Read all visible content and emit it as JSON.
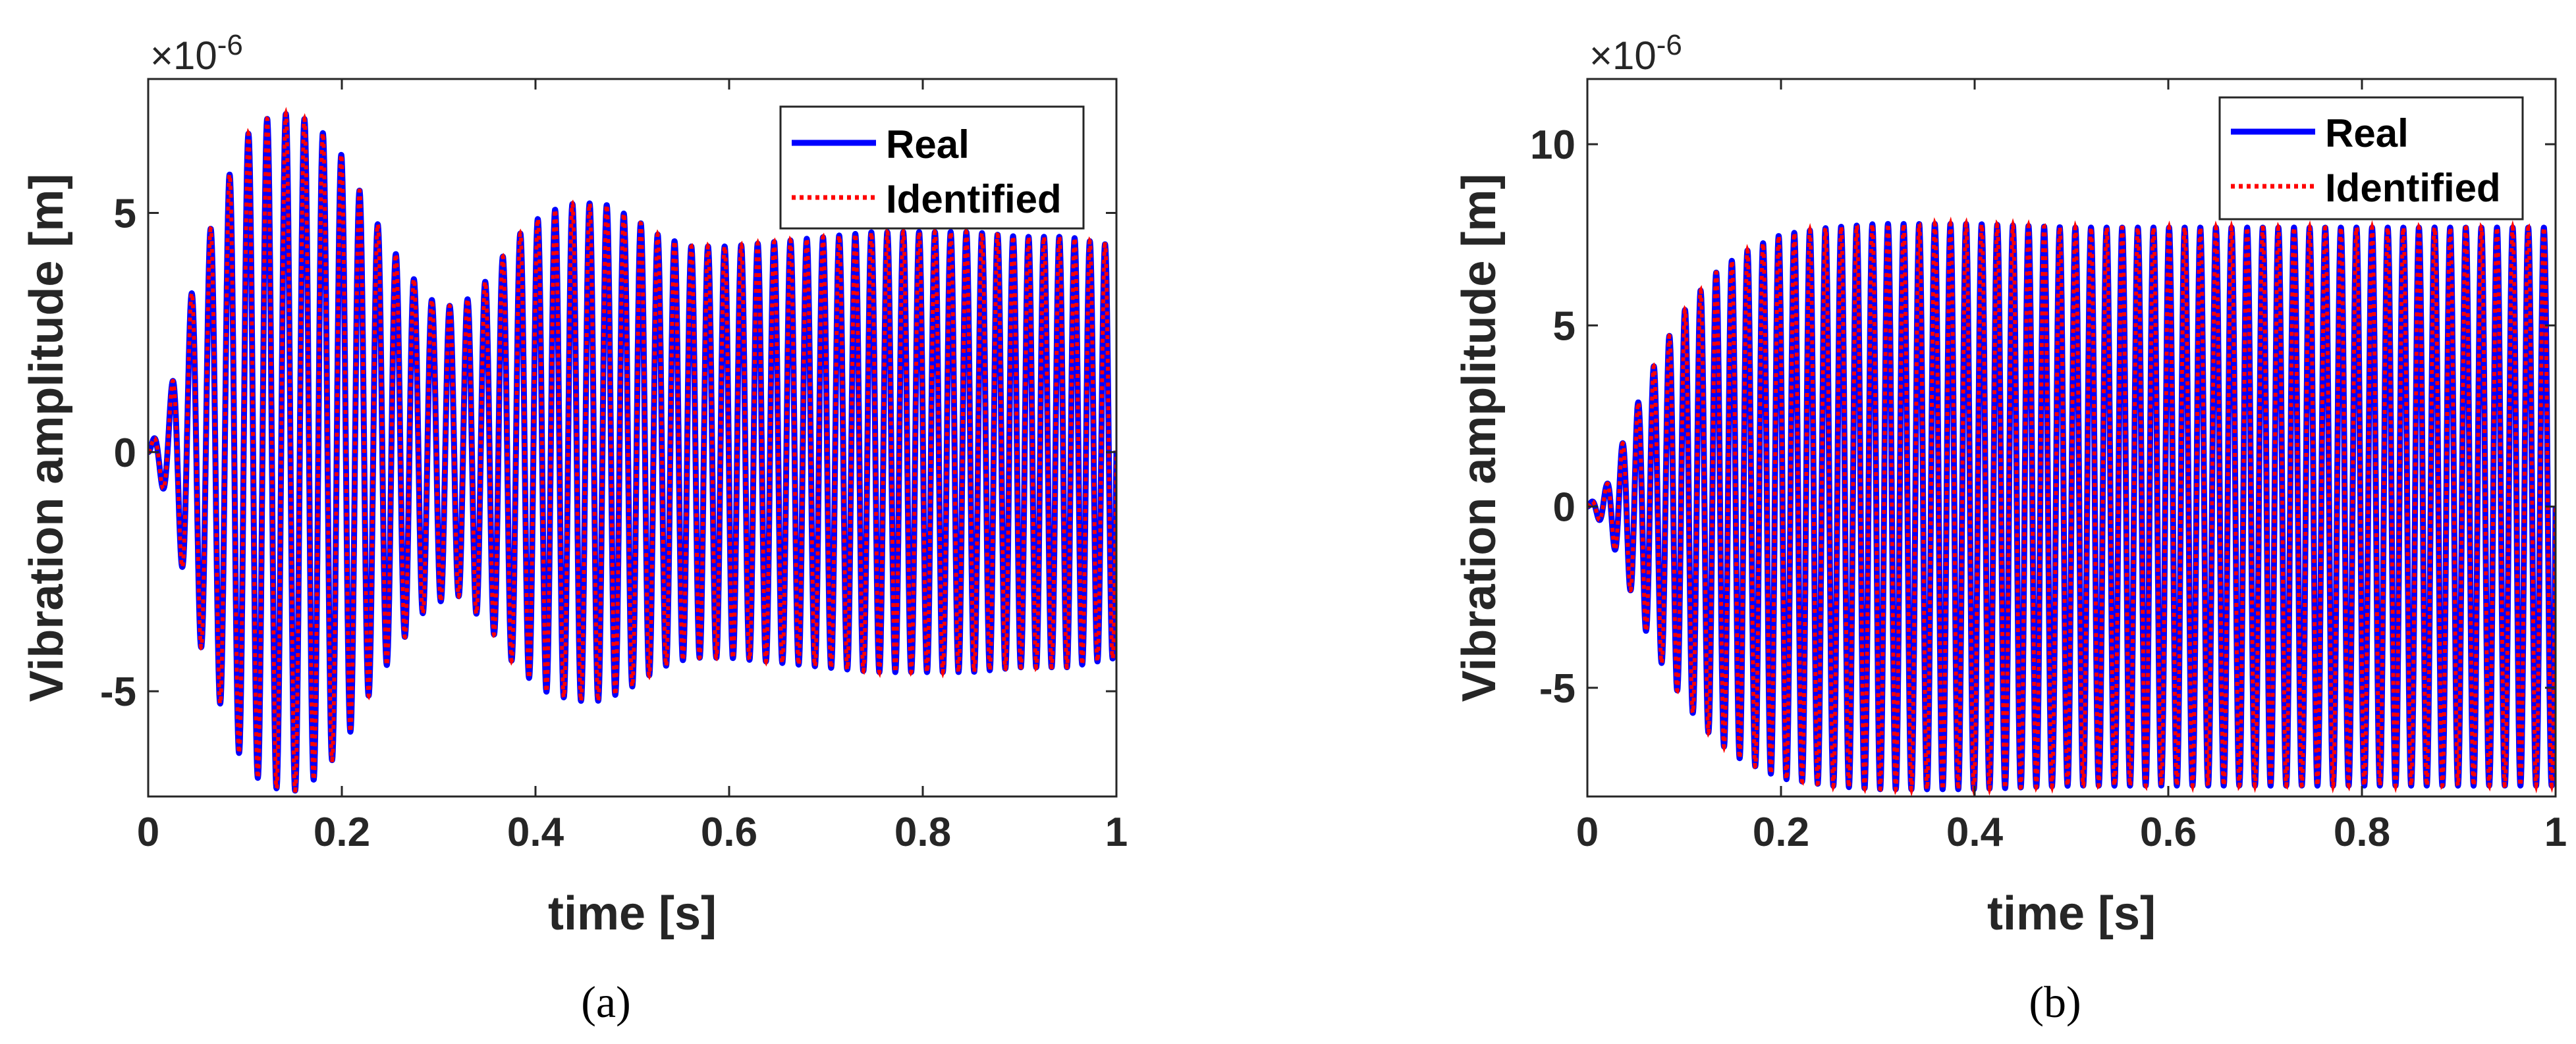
{
  "chart_data": [
    {
      "type": "line",
      "caption": "(a)",
      "xlabel": "time [s]",
      "ylabel": "Vibration amplitude [m]",
      "exponent_prefix": "×10",
      "exponent_power": "-6",
      "xlim": [
        0,
        1
      ],
      "ylim": [
        -7.2,
        7.8
      ],
      "xticks": [
        0,
        0.2,
        0.4,
        0.6,
        0.8,
        1
      ],
      "xtick_labels": [
        "0",
        "0.2",
        "0.4",
        "0.6",
        "0.8",
        "1"
      ],
      "yticks": [
        -5,
        0,
        5
      ],
      "ytick_labels": [
        "-5",
        "0",
        "5"
      ],
      "legend": [
        "Real",
        "Identified"
      ],
      "legend_position": "top-right",
      "series": [
        {
          "name": "Real",
          "color": "#0000ff",
          "style": "solid",
          "signal": {
            "frequency_hz": [
              50,
              64
            ],
            "envelope_t": [
              0,
              0.02,
              0.05,
              0.08,
              0.1,
              0.125,
              0.15,
              0.175,
              0.2,
              0.23,
              0.26,
              0.29,
              0.32,
              0.35,
              0.38,
              0.41,
              0.44,
              0.47,
              0.5,
              0.53,
              0.56,
              0.6,
              0.65,
              0.7,
              0.75,
              0.8,
              0.85,
              0.9,
              0.95,
              1.0
            ],
            "envelope_upper": [
              0,
              1.0,
              3.8,
              5.6,
              6.6,
              7.0,
              7.1,
              6.8,
              6.2,
              5.0,
              4.0,
              3.2,
              3.0,
              3.6,
              4.5,
              5.0,
              5.2,
              5.2,
              4.9,
              4.5,
              4.3,
              4.3,
              4.4,
              4.5,
              4.6,
              4.6,
              4.6,
              4.5,
              4.5,
              4.3
            ],
            "envelope_lower": [
              0,
              -1.0,
              -3.8,
              -5.6,
              -6.6,
              -7.0,
              -7.1,
              -6.8,
              -6.2,
              -5.0,
              -4.0,
              -3.2,
              -3.0,
              -3.6,
              -4.5,
              -5.0,
              -5.2,
              -5.2,
              -4.9,
              -4.5,
              -4.3,
              -4.3,
              -4.4,
              -4.5,
              -4.6,
              -4.6,
              -4.6,
              -4.5,
              -4.5,
              -4.3
            ]
          }
        },
        {
          "name": "Identified",
          "color": "#ff0000",
          "style": "dotted",
          "signal": {
            "frequency_hz": [
              50,
              64
            ],
            "envelope_t": [
              0,
              0.02,
              0.05,
              0.08,
              0.1,
              0.125,
              0.15,
              0.175,
              0.2,
              0.23,
              0.26,
              0.29,
              0.32,
              0.35,
              0.38,
              0.41,
              0.44,
              0.47,
              0.5,
              0.53,
              0.56,
              0.6,
              0.65,
              0.7,
              0.75,
              0.8,
              0.85,
              0.9,
              0.95,
              1.0
            ],
            "envelope_upper": [
              0,
              1.0,
              3.8,
              5.6,
              6.6,
              7.0,
              7.1,
              6.8,
              6.2,
              5.0,
              4.0,
              3.2,
              3.0,
              3.6,
              4.5,
              5.0,
              5.2,
              5.2,
              4.9,
              4.5,
              4.3,
              4.3,
              4.4,
              4.5,
              4.6,
              4.6,
              4.6,
              4.5,
              4.5,
              4.3
            ],
            "envelope_lower": [
              0,
              -1.0,
              -3.8,
              -5.6,
              -6.6,
              -7.0,
              -7.1,
              -6.8,
              -6.2,
              -5.0,
              -4.0,
              -3.2,
              -3.0,
              -3.6,
              -4.5,
              -5.0,
              -5.2,
              -5.2,
              -4.9,
              -4.5,
              -4.3,
              -4.3,
              -4.4,
              -4.5,
              -4.6,
              -4.6,
              -4.6,
              -4.5,
              -4.5,
              -4.3
            ]
          }
        }
      ]
    },
    {
      "type": "line",
      "caption": "(b)",
      "xlabel": "time [s]",
      "ylabel": "Vibration amplitude [m]",
      "exponent_prefix": "×10",
      "exponent_power": "-6",
      "xlim": [
        0,
        1
      ],
      "ylim": [
        -8.0,
        11.8
      ],
      "xticks": [
        0,
        0.2,
        0.4,
        0.6,
        0.8,
        1
      ],
      "xtick_labels": [
        "0",
        "0.2",
        "0.4",
        "0.6",
        "0.8",
        "1"
      ],
      "yticks": [
        -5,
        0,
        5,
        10
      ],
      "ytick_labels": [
        "-5",
        "0",
        "5",
        "10"
      ],
      "legend": [
        "Real",
        "Identified"
      ],
      "legend_position": "top-right",
      "series": [
        {
          "name": "Real",
          "color": "#0000ff",
          "style": "solid",
          "signal": {
            "frequency_hz": [
              62,
              62
            ],
            "envelope_t": [
              0,
              0.02,
              0.04,
              0.06,
              0.08,
              0.1,
              0.13,
              0.16,
              0.2,
              0.25,
              0.3,
              0.35,
              0.4,
              0.5,
              0.6,
              0.7,
              0.8,
              0.9,
              1.0
            ],
            "envelope_upper": [
              0,
              0.6,
              2.0,
              3.4,
              4.5,
              5.4,
              6.4,
              7.0,
              7.5,
              7.7,
              7.8,
              7.8,
              7.8,
              7.7,
              7.7,
              7.7,
              7.7,
              7.7,
              7.7
            ],
            "envelope_lower": [
              0,
              -0.6,
              -2.0,
              -3.4,
              -4.5,
              -5.4,
              -6.4,
              -7.0,
              -7.5,
              -7.7,
              -7.8,
              -7.8,
              -7.8,
              -7.7,
              -7.7,
              -7.7,
              -7.7,
              -7.7,
              -7.7
            ]
          }
        },
        {
          "name": "Identified",
          "color": "#ff0000",
          "style": "dotted",
          "signal": {
            "frequency_hz": [
              62,
              62
            ],
            "envelope_t": [
              0,
              0.02,
              0.04,
              0.06,
              0.08,
              0.1,
              0.13,
              0.16,
              0.2,
              0.25,
              0.3,
              0.35,
              0.4,
              0.5,
              0.6,
              0.7,
              0.8,
              0.9,
              1.0
            ],
            "envelope_upper": [
              0,
              0.6,
              2.0,
              3.4,
              4.5,
              5.4,
              6.4,
              7.0,
              7.5,
              7.7,
              7.8,
              7.8,
              7.8,
              7.7,
              7.7,
              7.7,
              7.7,
              7.7,
              7.7
            ],
            "envelope_lower": [
              0,
              -0.6,
              -2.0,
              -3.4,
              -4.5,
              -5.4,
              -6.4,
              -7.0,
              -7.5,
              -7.7,
              -7.8,
              -7.8,
              -7.8,
              -7.7,
              -7.7,
              -7.7,
              -7.7,
              -7.7,
              -7.7
            ]
          }
        }
      ]
    }
  ]
}
